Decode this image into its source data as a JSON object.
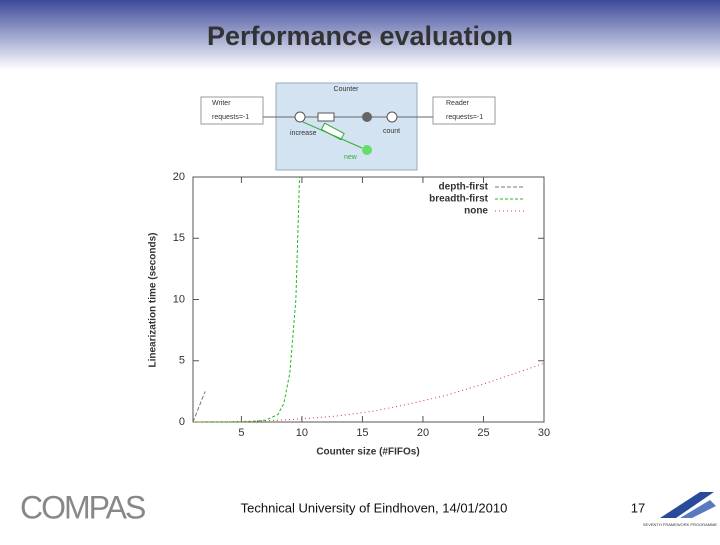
{
  "slide": {
    "title": "Performance evaluation",
    "footer": "Technical University of Eindhoven, 14/01/2010",
    "page": "17",
    "logo": "COMPAS",
    "eu_logo": "SEVENTH FRAMEWORK PROGRAMME"
  },
  "diagram": {
    "counter": "Counter",
    "writer": "Writer",
    "writer_port": "requests=-1",
    "reader": "Reader",
    "reader_port": "requests=-1",
    "increase": "increase",
    "count": "count",
    "new": "new"
  },
  "chart_data": {
    "type": "line",
    "xlabel": "Counter size (#FIFOs)",
    "ylabel": "Linearization time (seconds)",
    "xlim": [
      1,
      30
    ],
    "ylim": [
      0,
      20
    ],
    "xticks": [
      5,
      10,
      15,
      20,
      25,
      30
    ],
    "yticks": [
      0,
      5,
      10,
      15,
      20
    ],
    "legend": "upper right",
    "series": [
      {
        "name": "depth-first",
        "color": "#777777",
        "x": [
          1,
          2
        ],
        "values": [
          0,
          2.5
        ]
      },
      {
        "name": "breadth-first",
        "color": "#22bb22",
        "x": [
          1,
          2,
          3,
          4,
          5,
          6,
          7,
          8,
          8.5,
          9,
          9.5,
          9.8
        ],
        "values": [
          0,
          0,
          0,
          0,
          0.02,
          0.05,
          0.15,
          0.6,
          1.5,
          4,
          10,
          20
        ]
      },
      {
        "name": "none",
        "color": "#dd3333",
        "x": [
          1,
          4,
          7,
          10,
          13,
          16,
          19,
          22,
          25,
          28,
          30
        ],
        "values": [
          0,
          0.02,
          0.1,
          0.25,
          0.5,
          0.9,
          1.5,
          2.2,
          3.1,
          4.1,
          4.8
        ]
      }
    ]
  }
}
